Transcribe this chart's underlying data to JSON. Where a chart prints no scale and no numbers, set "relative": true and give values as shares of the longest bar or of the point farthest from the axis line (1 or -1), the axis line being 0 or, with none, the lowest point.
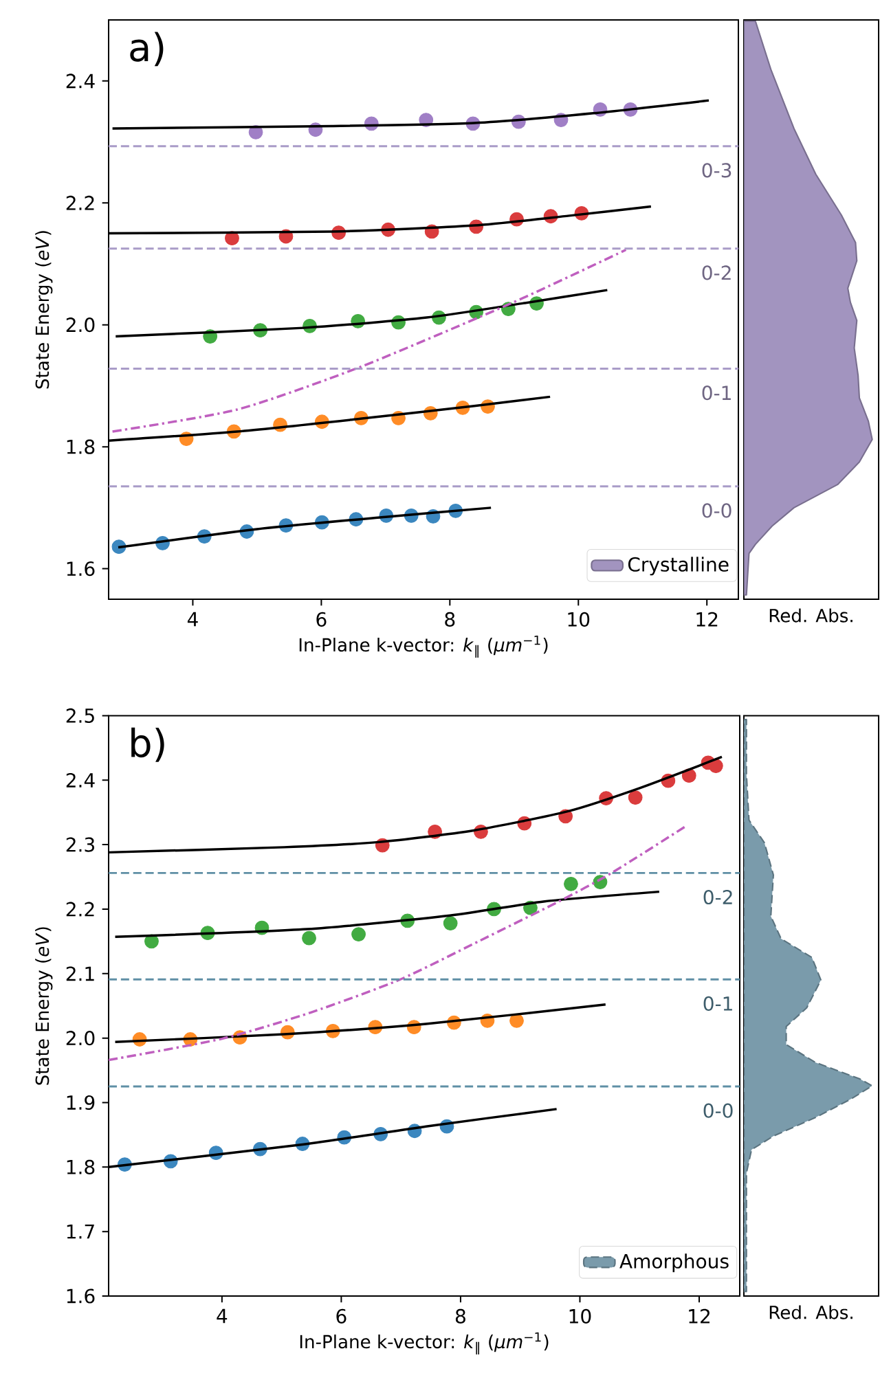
{
  "chart_data": [
    {
      "type": "scatter",
      "annotations": [
        "a)",
        {
          "text": "0-0",
          "y": 1.735
        },
        {
          "text": "0-1",
          "y": 1.928
        },
        {
          "text": "0-2",
          "y": 2.125
        },
        {
          "text": "0-3",
          "y": 2.293
        }
      ],
      "xlabel": "In-Plane k-vector: *k*$_{‖}$ (*μm*$^{−1}$)",
      "ylabel": "State Energy (*eV*)",
      "xlim": [
        2.69,
        12.49
      ],
      "ylim": [
        1.55,
        2.5
      ],
      "xticks": [
        4,
        6,
        8,
        10,
        12
      ],
      "yticks": [
        1.6,
        1.8,
        {
          "value": 2.0,
          "label": "2.0"
        },
        2.2,
        2.4
      ],
      "series": [
        {
          "color": "#3b87bf",
          "marker": "circle",
          "x": [
            2.85,
            3.53,
            4.18,
            4.84,
            5.45,
            6.01,
            6.54,
            7.01,
            7.4,
            7.74,
            8.09
          ],
          "values": [
            1.636,
            1.642,
            1.653,
            1.661,
            1.671,
            1.676,
            1.681,
            1.687,
            1.687,
            1.686,
            1.695
          ]
        },
        {
          "color": "#ff8c26",
          "marker": "circle",
          "x": [
            3.9,
            4.64,
            5.36,
            6.01,
            6.62,
            7.2,
            7.7,
            8.2,
            8.59
          ],
          "values": [
            1.813,
            1.825,
            1.836,
            1.841,
            1.847,
            1.847,
            1.855,
            1.864,
            1.866
          ]
        },
        {
          "color": "#42ab42",
          "marker": "circle",
          "x": [
            4.27,
            5.05,
            5.82,
            6.57,
            7.2,
            7.83,
            8.41,
            8.91,
            9.35
          ],
          "values": [
            1.981,
            1.991,
            1.998,
            2.006,
            2.004,
            2.012,
            2.021,
            2.026,
            2.035
          ]
        },
        {
          "color": "#da3c3d",
          "marker": "circle",
          "x": [
            4.61,
            5.45,
            6.27,
            7.04,
            7.72,
            8.41,
            9.04,
            9.57,
            10.05
          ],
          "values": [
            2.142,
            2.145,
            2.151,
            2.156,
            2.153,
            2.161,
            2.173,
            2.178,
            2.183
          ]
        },
        {
          "color": "#a07fc6",
          "marker": "circle",
          "x": [
            4.98,
            5.91,
            6.78,
            7.63,
            8.36,
            9.07,
            9.73,
            10.34,
            10.81
          ],
          "values": [
            2.316,
            2.32,
            2.33,
            2.336,
            2.33,
            2.333,
            2.336,
            2.353,
            2.353
          ]
        },
        {
          "type": "line",
          "color": "#000000",
          "x": [
            2.84,
            5.0,
            7.0,
            8.64
          ],
          "values": [
            1.635,
            1.665,
            1.685,
            1.7
          ]
        },
        {
          "type": "line",
          "color": "#000000",
          "x": [
            2.69,
            4.69,
            6.61,
            8.38,
            9.56
          ],
          "values": [
            1.81,
            1.825,
            1.846,
            1.867,
            1.882
          ]
        },
        {
          "type": "line",
          "color": "#000000",
          "x": [
            2.8,
            5.72,
            7.64,
            9.12,
            10.45
          ],
          "values": [
            1.981,
            1.995,
            2.012,
            2.035,
            2.057
          ]
        },
        {
          "type": "line",
          "color": "#000000",
          "x": [
            2.69,
            6.16,
            8.38,
            9.86,
            11.13
          ],
          "values": [
            2.15,
            2.153,
            2.163,
            2.179,
            2.194
          ]
        },
        {
          "type": "line",
          "color": "#000000",
          "x": [
            2.75,
            6.16,
            8.38,
            10.23,
            12.03
          ],
          "values": [
            2.322,
            2.326,
            2.331,
            2.347,
            2.368
          ]
        },
        {
          "type": "line",
          "color": "#bf5fbf",
          "line_style": "dashdot",
          "x": [
            2.75,
            4.69,
            6.61,
            8.97,
            10.74
          ],
          "values": [
            1.825,
            1.861,
            1.931,
            2.036,
            2.123
          ]
        }
      ],
      "ref_lines": [
        {
          "axis": "y",
          "value": 1.735,
          "color": "#a99cc8",
          "line_style": "dashed"
        },
        {
          "axis": "y",
          "value": 1.928,
          "color": "#a99cc8",
          "line_style": "dashed"
        },
        {
          "axis": "y",
          "value": 2.125,
          "color": "#a99cc8",
          "line_style": "dashed"
        },
        {
          "axis": "y",
          "value": 2.293,
          "color": "#a99cc8",
          "line_style": "dashed"
        }
      ]
    },
    {
      "type": "area",
      "orientation": "horizontal",
      "relative": true,
      "xlabel": "Red. Abs.",
      "ylim": [
        1.55,
        2.5
      ],
      "legend": "bottom left",
      "series": [
        {
          "name": "Crystalline",
          "color": "#a294bf",
          "x": [
            1.557,
            1.625,
            1.64,
            1.67,
            1.7,
            1.738,
            1.775,
            1.812,
            1.842,
            1.88,
            1.917,
            1.962,
            2.007,
            2.037,
            2.06,
            2.105,
            2.135,
            2.18,
            2.247,
            2.322,
            2.419,
            2.498
          ],
          "values": [
            0.02,
            0.04,
            0.09,
            0.22,
            0.39,
            0.73,
            0.9,
            1.0,
            0.97,
            0.9,
            0.89,
            0.86,
            0.88,
            0.83,
            0.81,
            0.88,
            0.87,
            0.76,
            0.56,
            0.39,
            0.21,
            0.09
          ]
        }
      ]
    },
    {
      "type": "scatter",
      "annotations": [
        "b)",
        {
          "text": "0-0",
          "y": 1.925
        },
        {
          "text": "0-1",
          "y": 2.091
        },
        {
          "text": "0-2",
          "y": 2.256
        }
      ],
      "xlabel": "In-Plane k-vector: *k*$_{‖}$ (*μm*$^{−1}$)",
      "ylabel": "State Energy (*eV*)",
      "xlim": [
        2.1,
        12.68
      ],
      "ylim": [
        1.6,
        2.5
      ],
      "xticks": [
        4,
        6,
        8,
        10,
        12
      ],
      "yticks": [
        1.6,
        1.7,
        1.8,
        1.9,
        {
          "value": 2.0,
          "label": "2.0"
        },
        2.1,
        2.2,
        2.3,
        2.4,
        2.5
      ],
      "series": [
        {
          "color": "#3b87bf",
          "marker": "circle",
          "x": [
            2.37,
            3.14,
            3.9,
            4.64,
            5.35,
            6.05,
            6.66,
            7.23,
            7.77
          ],
          "values": [
            1.804,
            1.809,
            1.822,
            1.828,
            1.836,
            1.846,
            1.851,
            1.856,
            1.863
          ]
        },
        {
          "color": "#ff8c26",
          "marker": "circle",
          "x": [
            2.62,
            3.47,
            4.3,
            5.1,
            5.86,
            6.57,
            7.22,
            7.89,
            8.45,
            8.94
          ],
          "values": [
            1.998,
            1.998,
            2.001,
            2.009,
            2.011,
            2.017,
            2.017,
            2.024,
            2.027,
            2.027
          ]
        },
        {
          "color": "#42ab42",
          "marker": "circle",
          "x": [
            2.82,
            3.76,
            4.67,
            5.46,
            6.29,
            7.11,
            7.83,
            8.56,
            9.17,
            9.85,
            10.34
          ],
          "values": [
            2.15,
            2.163,
            2.171,
            2.155,
            2.161,
            2.182,
            2.178,
            2.2,
            2.202,
            2.239,
            2.242
          ]
        },
        {
          "color": "#da3c3d",
          "marker": "circle",
          "x": [
            6.69,
            7.57,
            8.34,
            9.07,
            9.76,
            10.44,
            10.93,
            11.48,
            11.83,
            12.15,
            12.28
          ],
          "values": [
            2.299,
            2.32,
            2.32,
            2.333,
            2.344,
            2.372,
            2.373,
            2.399,
            2.407,
            2.427,
            2.422
          ]
        },
        {
          "type": "line",
          "color": "#000000",
          "x": [
            2.1,
            5.35,
            7.42,
            9.61
          ],
          "values": [
            1.8,
            1.835,
            1.863,
            1.89
          ]
        },
        {
          "type": "line",
          "color": "#000000",
          "x": [
            2.21,
            5.04,
            7.42,
            10.43
          ],
          "values": [
            1.994,
            2.006,
            2.022,
            2.052
          ]
        },
        {
          "type": "line",
          "color": "#000000",
          "x": [
            2.21,
            5.43,
            7.82,
            9.41,
            11.33
          ],
          "values": [
            2.157,
            2.169,
            2.19,
            2.212,
            2.227
          ]
        },
        {
          "type": "line",
          "color": "#000000",
          "x": [
            2.1,
            5.04,
            6.63,
            8.22,
            9.81,
            11.01,
            12.38
          ],
          "values": [
            2.288,
            2.296,
            2.304,
            2.322,
            2.352,
            2.388,
            2.436
          ]
        },
        {
          "type": "line",
          "color": "#bf5fbf",
          "line_style": "dashdot",
          "x": [
            2.1,
            4.0,
            5.5,
            6.99,
            8.3,
            9.65,
            10.53,
            11.8
          ],
          "values": [
            1.966,
            1.999,
            2.04,
            2.091,
            2.15,
            2.212,
            2.256,
            2.33
          ]
        }
      ],
      "ref_lines": [
        {
          "axis": "y",
          "value": 1.925,
          "color": "#5f8fa5",
          "line_style": "dashed"
        },
        {
          "axis": "y",
          "value": 2.091,
          "color": "#5f8fa5",
          "line_style": "dashed"
        },
        {
          "axis": "y",
          "value": 2.256,
          "color": "#5f8fa5",
          "line_style": "dashed"
        }
      ]
    },
    {
      "type": "area",
      "orientation": "horizontal",
      "relative": true,
      "xlabel": "Red. Abs.",
      "ylim": [
        1.6,
        2.5
      ],
      "legend": "bottom left",
      "series": [
        {
          "name": "Amorphous",
          "color": "#7a9bab",
          "line_style": "dashed",
          "x": [
            1.607,
            1.699,
            1.791,
            1.827,
            1.848,
            1.877,
            1.905,
            1.926,
            1.937,
            1.962,
            1.99,
            2.018,
            2.047,
            2.09,
            2.125,
            2.154,
            2.189,
            2.253,
            2.303,
            2.338,
            2.409,
            2.494
          ],
          "values": [
            0.02,
            0.02,
            0.02,
            0.06,
            0.23,
            0.56,
            0.83,
            1.0,
            0.9,
            0.56,
            0.33,
            0.33,
            0.49,
            0.6,
            0.53,
            0.29,
            0.21,
            0.23,
            0.16,
            0.04,
            0.02,
            0.02
          ]
        }
      ]
    }
  ]
}
